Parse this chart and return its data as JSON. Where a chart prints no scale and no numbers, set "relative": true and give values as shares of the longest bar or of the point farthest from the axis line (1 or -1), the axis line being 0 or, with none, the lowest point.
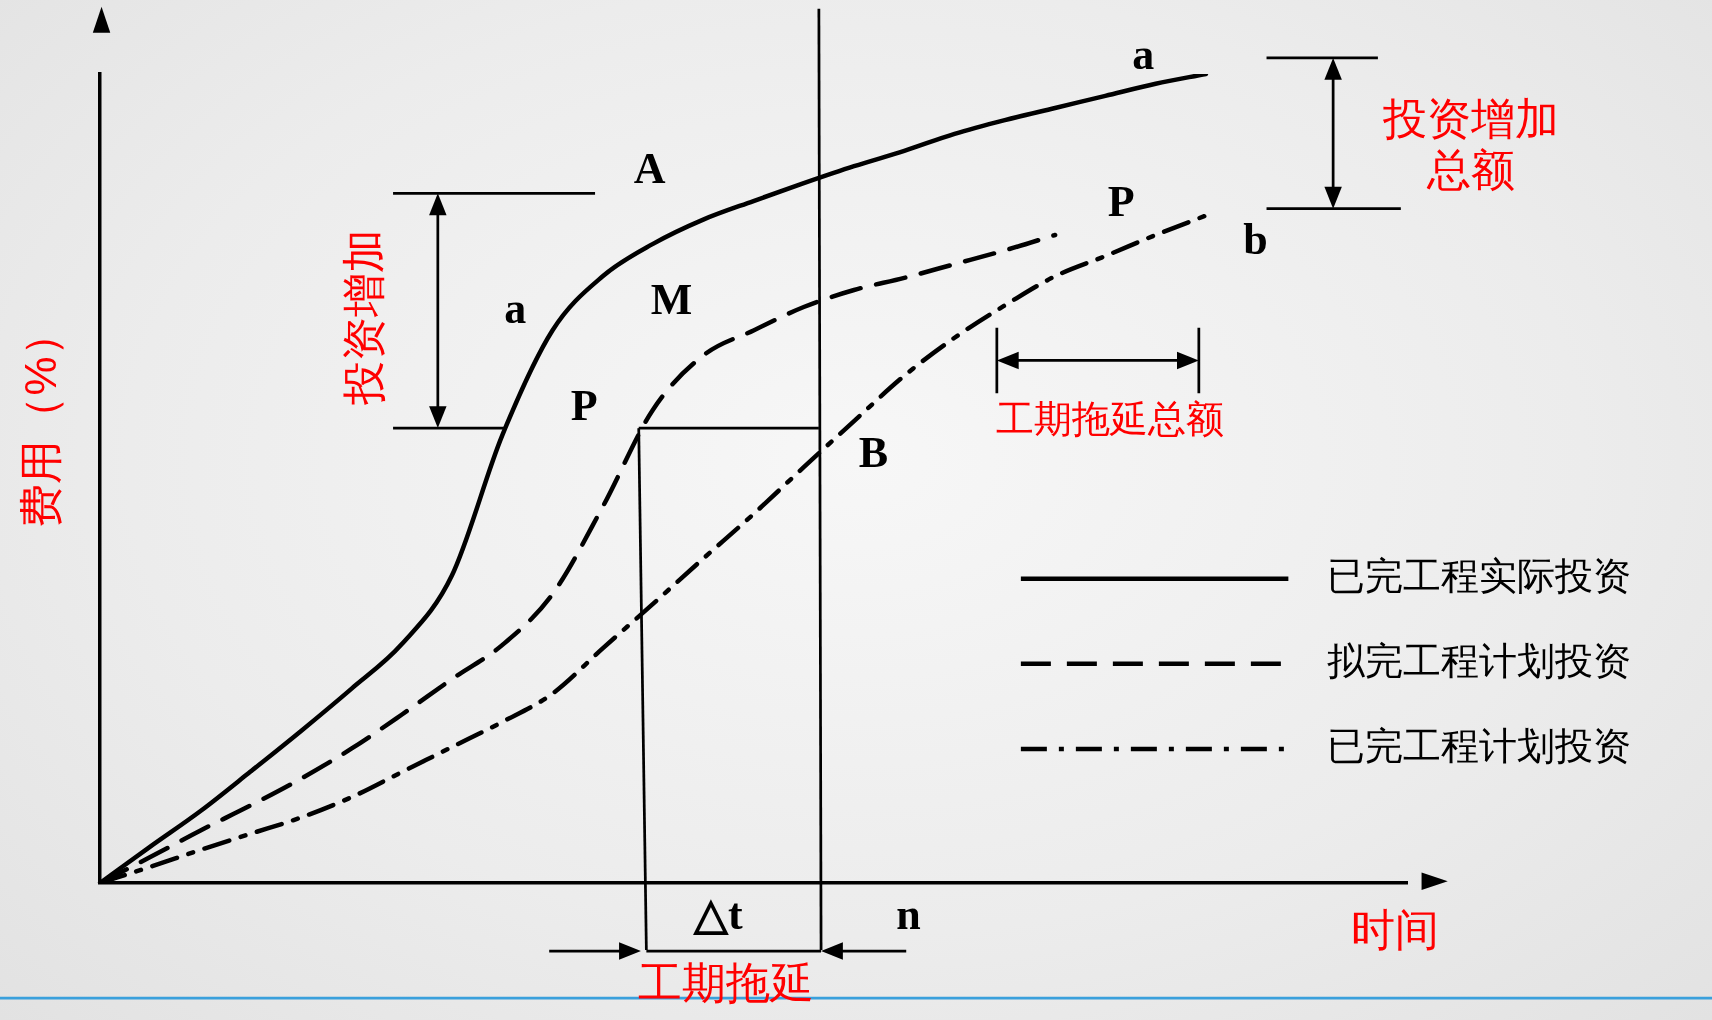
{
  "chart_data": {
    "type": "line",
    "relative": true,
    "xlabel": "时间",
    "ylabel": "费用（%）",
    "categories": [
      null,
      null,
      null,
      null,
      null,
      null,
      null,
      null,
      null,
      null,
      null,
      null,
      null,
      null,
      null,
      null,
      null,
      null,
      null,
      null,
      null,
      null,
      null,
      null,
      null,
      null,
      null
    ],
    "series": [
      {
        "name": "已完工程实际投资",
        "color": "#000000",
        "line_style": "solid",
        "values": [
          0,
          0.045,
          0.089,
          0.138,
          0.188,
          0.24,
          0.295,
          0.38,
          0.553,
          0.683,
          0.75,
          0.79,
          0.82,
          0.843,
          0.865,
          0.886,
          0.905,
          0.926,
          0.943,
          0.958,
          0.973,
          0.988,
          1,
          null,
          null,
          null,
          null
        ]
      },
      {
        "name": "拟完工程计划投资",
        "color": "#000000",
        "line_style": "dashed",
        "values": [
          0,
          0.032,
          0.065,
          0.096,
          0.129,
          0.166,
          0.208,
          0.252,
          0.294,
          0.357,
          0.465,
          0.585,
          0.652,
          0.683,
          0.712,
          0.733,
          0.748,
          0.765,
          0.782,
          0.801,
          null,
          null,
          null,
          null,
          null,
          null,
          null
        ]
      },
      {
        "name": "已完工程计划投资",
        "color": "#000000",
        "line_style": "dashdot",
        "values": [
          0,
          0.02,
          0.041,
          0.061,
          0.081,
          0.106,
          0.137,
          0.168,
          0.199,
          0.234,
          0.29,
          0.345,
          0.401,
          0.456,
          0.514,
          0.571,
          0.627,
          0.674,
          0.714,
          0.75,
          0.775,
          0.801,
          0.825,
          null,
          null,
          null,
          null
        ]
      }
    ],
    "legend": "bottom right",
    "marker": "none",
    "grid": false,
    "tick_labels": false,
    "annotations": [
      "a",
      "A",
      "a",
      "M",
      "P",
      "P",
      "b",
      "B",
      "△t",
      "n",
      "投资增加",
      "投资增加总额",
      "工期拖延总额",
      "工期拖延"
    ]
  }
}
